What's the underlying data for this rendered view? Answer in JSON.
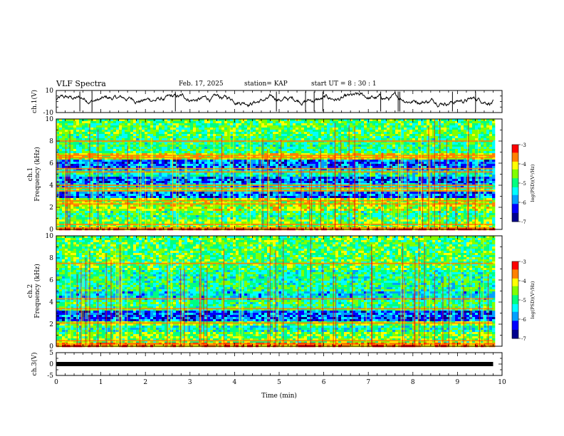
{
  "header": {
    "title": "VLF Spectra",
    "date": "Feb. 17, 2025",
    "station": "station= KAP",
    "start": "start  UT =   8  : 30 : 1"
  },
  "colors": {
    "spectrum_scale": [
      "#00008f",
      "#0000ff",
      "#00a0ff",
      "#00ffff",
      "#00ff80",
      "#80ff00",
      "#ffff00",
      "#ff8000",
      "#ff0000"
    ],
    "trace": "#000000"
  },
  "chart_data": [
    {
      "type": "line",
      "name": "ch1-waveform",
      "ylabel": "ch.1(V)",
      "ylim": [
        -10,
        10
      ],
      "y_ticks": [
        "10",
        "-10"
      ],
      "xlim": [
        0,
        10
      ],
      "trace_range": [
        0,
        9.8
      ],
      "approx_level": 2,
      "approx_amplitude": 5
    },
    {
      "type": "heatmap",
      "name": "ch1-spectrogram",
      "ylabel_line1": "ch.1",
      "ylabel_line2": "Frequency  (kHz)",
      "ylim": [
        0,
        10
      ],
      "y_ticks": [
        "0",
        "2",
        "4",
        "6",
        "8",
        "10"
      ],
      "xlim": [
        0,
        10
      ],
      "data_range": [
        0,
        9.8
      ],
      "colorbar": {
        "label": "log(PSD)(V²/Hz)",
        "min": -7,
        "max": -3,
        "ticks": [
          "-3",
          "-4",
          "-5",
          "-6",
          "-7"
        ]
      },
      "bands": [
        {
          "f0": 0.0,
          "f1": 0.2,
          "level": -3.5
        },
        {
          "f0": 0.2,
          "f1": 1.0,
          "level": -4.6
        },
        {
          "f0": 1.0,
          "f1": 1.6,
          "level": -5.0
        },
        {
          "f0": 1.6,
          "f1": 2.8,
          "level": -4.4
        },
        {
          "f0": 2.8,
          "f1": 3.5,
          "level": -6.0
        },
        {
          "f0": 3.5,
          "f1": 3.9,
          "level": -4.8
        },
        {
          "f0": 3.9,
          "f1": 4.2,
          "level": -5.6
        },
        {
          "f0": 4.2,
          "f1": 4.8,
          "level": -6.1
        },
        {
          "f0": 4.8,
          "f1": 5.3,
          "level": -5.3
        },
        {
          "f0": 5.3,
          "f1": 5.6,
          "level": -5.8
        },
        {
          "f0": 5.6,
          "f1": 6.3,
          "level": -6.0
        },
        {
          "f0": 6.3,
          "f1": 6.9,
          "level": -4.2
        },
        {
          "f0": 6.9,
          "f1": 8.5,
          "level": -5.0
        },
        {
          "f0": 8.5,
          "f1": 10.0,
          "level": -4.8
        }
      ],
      "lines": [
        0.15,
        0.45,
        2.3,
        2.6,
        3.5,
        3.75,
        4.0,
        5.2,
        5.5,
        6.5,
        6.7,
        8.0
      ]
    },
    {
      "type": "heatmap",
      "name": "ch2-spectrogram",
      "ylabel_line1": "ch.2",
      "ylabel_line2": "Frequency  (kHz)",
      "ylim": [
        0,
        10
      ],
      "y_ticks": [
        "0",
        "2",
        "4",
        "6",
        "8",
        "10"
      ],
      "xlim": [
        0,
        10
      ],
      "data_range": [
        0,
        9.8
      ],
      "colorbar": {
        "label": "log(PSD)(V²/Hz)",
        "min": -7,
        "max": -3,
        "ticks": [
          "-3",
          "-4",
          "-5",
          "-6",
          "-7"
        ]
      },
      "bands": [
        {
          "f0": 0.0,
          "f1": 0.4,
          "level": -3.6
        },
        {
          "f0": 0.4,
          "f1": 1.3,
          "level": -4.6
        },
        {
          "f0": 1.3,
          "f1": 1.9,
          "level": -5.2
        },
        {
          "f0": 1.9,
          "f1": 2.3,
          "level": -4.6
        },
        {
          "f0": 2.3,
          "f1": 3.3,
          "level": -6.1
        },
        {
          "f0": 3.3,
          "f1": 4.2,
          "level": -5.0
        },
        {
          "f0": 4.2,
          "f1": 5.0,
          "level": -5.5
        },
        {
          "f0": 5.0,
          "f1": 7.0,
          "level": -5.1
        },
        {
          "f0": 7.0,
          "f1": 10.0,
          "level": -4.8
        }
      ],
      "lines": [
        0.2,
        0.5,
        2.1,
        3.4,
        4.3,
        7.5
      ]
    },
    {
      "type": "line",
      "name": "ch3-waveform",
      "ylabel": "ch.3(V)",
      "ylim": [
        -5,
        5
      ],
      "y_ticks": [
        "5",
        "0",
        "-5"
      ],
      "xlim": [
        0,
        10
      ],
      "trace_range": [
        0,
        9.8
      ],
      "approx_level": 0,
      "approx_amplitude": 0.5
    }
  ],
  "x_axis": {
    "label": "Time  (min)",
    "ticks": [
      "0",
      "1",
      "2",
      "3",
      "4",
      "5",
      "6",
      "7",
      "8",
      "9",
      "10"
    ],
    "range": [
      0,
      10
    ]
  }
}
